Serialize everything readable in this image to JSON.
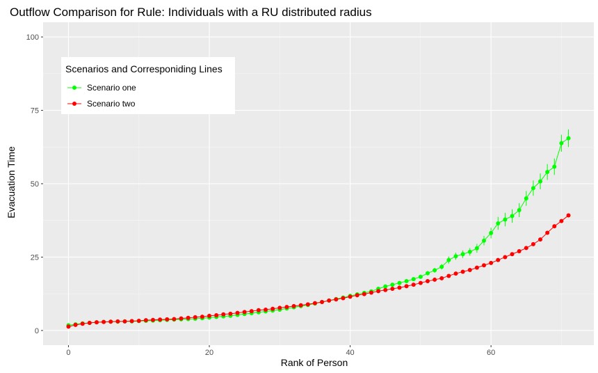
{
  "chart_data": {
    "type": "line",
    "title": "Outflow Comparison for Rule: Individuals with a RU distributed radius",
    "xlabel": "Rank of Person",
    "ylabel": "Evacuation Time",
    "xlim": [
      -3.6,
      74.6
    ],
    "ylim": [
      -5,
      105
    ],
    "xticks": [
      0,
      20,
      40,
      60
    ],
    "yticks": [
      0,
      25,
      50,
      75,
      100
    ],
    "grid": true,
    "error_bars": true,
    "legend": {
      "title": "Scenarios and Corresponiding Lines",
      "position": "top-left"
    },
    "series": [
      {
        "name": "Scenario one",
        "color": "#00ff00",
        "x": [
          0,
          1,
          2,
          3,
          4,
          5,
          6,
          7,
          8,
          9,
          10,
          11,
          12,
          13,
          14,
          15,
          16,
          17,
          18,
          19,
          20,
          21,
          22,
          23,
          24,
          25,
          26,
          27,
          28,
          29,
          30,
          31,
          32,
          33,
          34,
          35,
          36,
          37,
          38,
          39,
          40,
          41,
          42,
          43,
          44,
          45,
          46,
          47,
          48,
          49,
          50,
          51,
          52,
          53,
          54,
          55,
          56,
          57,
          58,
          59,
          60,
          61,
          62,
          63,
          64,
          65,
          66,
          67,
          68,
          69,
          70,
          71
        ],
        "y": [
          1.8,
          2.1,
          2.4,
          2.6,
          2.8,
          2.9,
          3.0,
          3.0,
          3.1,
          3.1,
          3.2,
          3.3,
          3.4,
          3.5,
          3.6,
          3.7,
          3.8,
          3.9,
          4.0,
          4.2,
          4.4,
          4.6,
          4.8,
          5.0,
          5.3,
          5.6,
          5.9,
          6.2,
          6.5,
          6.8,
          7.1,
          7.5,
          7.9,
          8.3,
          8.7,
          9.2,
          9.7,
          10.2,
          10.7,
          11.2,
          11.8,
          12.3,
          12.8,
          13.3,
          14.2,
          15.0,
          15.6,
          16.2,
          16.8,
          17.5,
          18.3,
          19.5,
          20.5,
          21.7,
          24.0,
          25.3,
          26.0,
          26.8,
          28.0,
          30.6,
          33.2,
          36.5,
          37.8,
          39.0,
          41.0,
          45.0,
          48.5,
          50.8,
          54.0,
          55.8,
          63.8,
          65.5
        ],
        "err": [
          0.3,
          0.3,
          0.3,
          0.3,
          0.3,
          0.3,
          0.3,
          0.3,
          0.3,
          0.3,
          0.3,
          0.3,
          0.3,
          0.3,
          0.3,
          0.3,
          0.3,
          0.3,
          0.3,
          0.3,
          0.3,
          0.3,
          0.3,
          0.3,
          0.3,
          0.3,
          0.3,
          0.3,
          0.3,
          0.3,
          0.3,
          0.3,
          0.3,
          0.3,
          0.3,
          0.3,
          0.3,
          0.3,
          0.3,
          0.3,
          0.4,
          0.4,
          0.4,
          0.4,
          0.5,
          0.5,
          0.5,
          0.5,
          0.6,
          0.6,
          0.7,
          0.7,
          0.8,
          0.9,
          1.2,
          1.2,
          1.3,
          1.3,
          1.5,
          1.6,
          1.8,
          2.2,
          2.3,
          2.3,
          2.4,
          2.5,
          2.6,
          2.7,
          2.7,
          2.8,
          2.9,
          3.0
        ]
      },
      {
        "name": "Scenario two",
        "color": "#ff0000",
        "x": [
          0,
          1,
          2,
          3,
          4,
          5,
          6,
          7,
          8,
          9,
          10,
          11,
          12,
          13,
          14,
          15,
          16,
          17,
          18,
          19,
          20,
          21,
          22,
          23,
          24,
          25,
          26,
          27,
          28,
          29,
          30,
          31,
          32,
          33,
          34,
          35,
          36,
          37,
          38,
          39,
          40,
          41,
          42,
          43,
          44,
          45,
          46,
          47,
          48,
          49,
          50,
          51,
          52,
          53,
          54,
          55,
          56,
          57,
          58,
          59,
          60,
          61,
          62,
          63,
          64,
          65,
          66,
          67,
          68,
          69,
          70,
          71
        ],
        "y": [
          1.3,
          1.9,
          2.3,
          2.6,
          2.8,
          2.9,
          3.0,
          3.1,
          3.1,
          3.2,
          3.3,
          3.5,
          3.6,
          3.7,
          3.8,
          3.9,
          4.1,
          4.3,
          4.5,
          4.7,
          5.0,
          5.2,
          5.5,
          5.7,
          6.0,
          6.3,
          6.6,
          6.9,
          7.1,
          7.4,
          7.7,
          8.0,
          8.3,
          8.6,
          8.9,
          9.3,
          9.7,
          10.2,
          10.6,
          11.0,
          11.5,
          12.0,
          12.4,
          12.9,
          13.4,
          13.8,
          14.2,
          14.6,
          15.1,
          15.6,
          16.2,
          16.8,
          17.3,
          17.8,
          18.6,
          19.4,
          20.0,
          20.6,
          21.4,
          22.2,
          23.0,
          24.0,
          25.0,
          26.0,
          27.0,
          28.1,
          29.4,
          31.0,
          33.3,
          35.5,
          37.3,
          39.2
        ],
        "err": []
      }
    ]
  }
}
